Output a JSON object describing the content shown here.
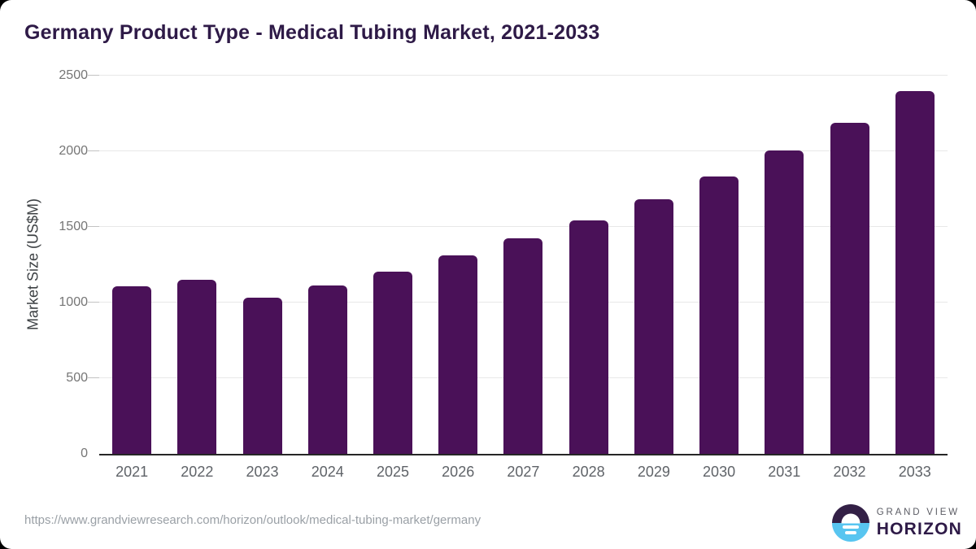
{
  "title": "Germany Product Type - Medical Tubing Market, 2021-2033",
  "chart_data": {
    "type": "bar",
    "title": "Germany Product Type - Medical Tubing Market, 2021-2033",
    "categories": [
      "2021",
      "2022",
      "2023",
      "2024",
      "2025",
      "2026",
      "2027",
      "2028",
      "2029",
      "2030",
      "2031",
      "2032",
      "2033"
    ],
    "values": [
      1110,
      1150,
      1035,
      1115,
      1205,
      1310,
      1425,
      1545,
      1685,
      1835,
      2005,
      2190,
      2400
    ],
    "xlabel": "",
    "ylabel": "Market Size (US$M)",
    "ylim": [
      0,
      2500
    ],
    "yticks": [
      0,
      500,
      1000,
      1500,
      2000,
      2500
    ],
    "grid": true,
    "legend": false,
    "bar_color": "#4a1158"
  },
  "footer": {
    "source_url": "https://www.grandviewresearch.com/horizon/outlook/medical-tubing-market/germany",
    "logo": {
      "line1": "GRAND VIEW",
      "line2": "HORIZON"
    }
  },
  "colors": {
    "title": "#2e1a47",
    "bar": "#4a1158",
    "gridline": "#e8e8e8",
    "axis_line": "#262626",
    "y_tick_label": "#757575",
    "x_tick_label": "#5f6368",
    "y_axis_title": "#3c4043",
    "source_url": "#9aa0a6",
    "logo_purple": "#332046",
    "logo_blue": "#58c5f0"
  }
}
